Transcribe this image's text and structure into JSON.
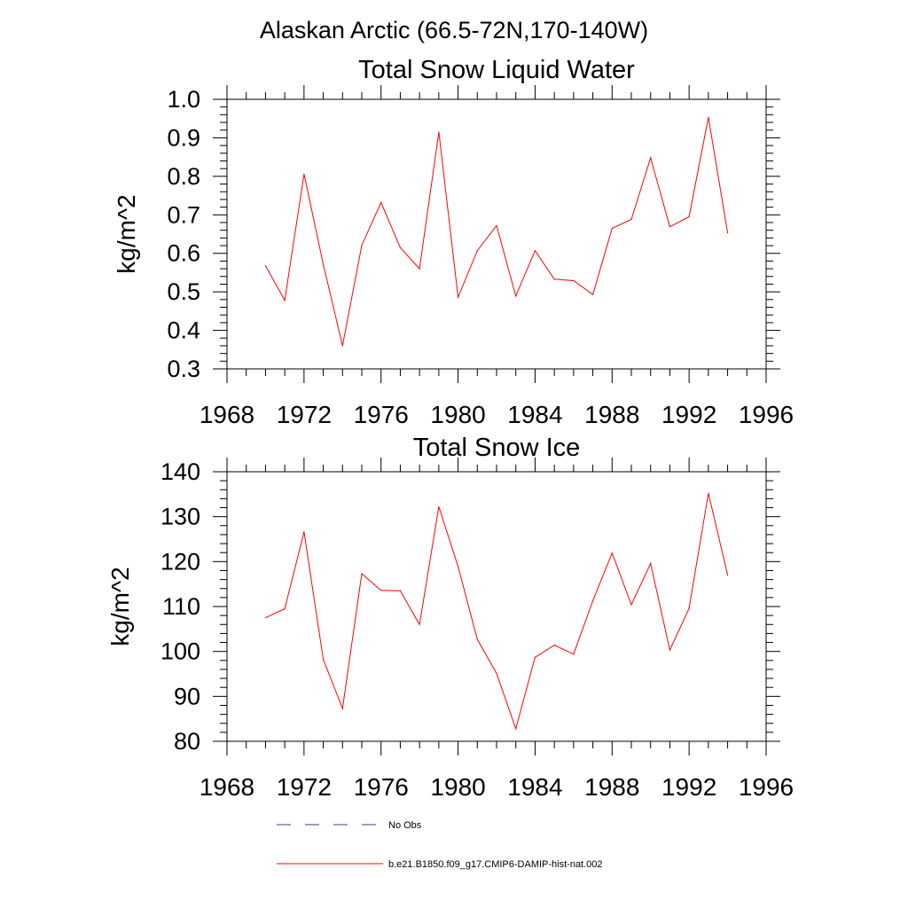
{
  "header": {
    "title": "Alaskan Arctic (66.5-72N,170-140W)"
  },
  "colors": {
    "series": "#ff0000",
    "obs": "#3c3c8c",
    "axis": "#000000"
  },
  "legend": [
    {
      "label": "No Obs",
      "style": "dashed",
      "color": "#3c3c8c"
    },
    {
      "label": "b.e21.B1850.f09_g17.CMIP6-DAMIP-hist-nat.002",
      "style": "solid",
      "color": "#ff0000"
    }
  ],
  "chart_data": [
    {
      "type": "line",
      "title": "Total Snow Liquid Water",
      "ylabel": "kg/m^2",
      "xlabel": "",
      "xlim": [
        1968,
        1996
      ],
      "ylim": [
        0.3,
        1.0
      ],
      "xticks": [
        "1968",
        "1972",
        "1976",
        "1980",
        "1984",
        "1988",
        "1992",
        "1996"
      ],
      "yticks": [
        "0.3",
        "0.4",
        "0.5",
        "0.6",
        "0.7",
        "0.8",
        "0.9",
        "1.0"
      ],
      "x": [
        1970,
        1971,
        1972,
        1973,
        1974,
        1975,
        1976,
        1977,
        1978,
        1979,
        1980,
        1981,
        1982,
        1983,
        1984,
        1985,
        1986,
        1987,
        1988,
        1989,
        1990,
        1991,
        1992,
        1993,
        1994
      ],
      "series": [
        {
          "values": [
            0.568,
            0.478,
            0.806,
            0.571,
            0.36,
            0.621,
            0.732,
            0.615,
            0.56,
            0.915,
            0.486,
            0.607,
            0.672,
            0.489,
            0.607,
            0.533,
            0.529,
            0.493,
            0.665,
            0.688,
            0.848,
            0.669,
            0.695,
            0.953,
            0.653
          ]
        }
      ],
      "grid": false
    },
    {
      "type": "line",
      "title": "Total Snow Ice",
      "ylabel": "kg/m^2",
      "xlabel": "",
      "xlim": [
        1968,
        1996
      ],
      "ylim": [
        80,
        140
      ],
      "xticks": [
        "1968",
        "1972",
        "1976",
        "1980",
        "1984",
        "1988",
        "1992",
        "1996"
      ],
      "yticks": [
        "80",
        "90",
        "100",
        "110",
        "120",
        "130",
        "140"
      ],
      "x": [
        1970,
        1971,
        1972,
        1973,
        1974,
        1975,
        1976,
        1977,
        1978,
        1979,
        1980,
        1981,
        1982,
        1983,
        1984,
        1985,
        1986,
        1987,
        1988,
        1989,
        1990,
        1991,
        1992,
        1993,
        1994
      ],
      "series": [
        {
          "values": [
            107.5,
            109.5,
            126.6,
            98.2,
            87.3,
            117.3,
            113.6,
            113.5,
            106.0,
            132.2,
            118.9,
            102.7,
            95.1,
            82.8,
            98.7,
            101.4,
            99.4,
            111.3,
            121.9,
            110.4,
            119.6,
            100.3,
            109.6,
            135.2,
            117.0
          ]
        }
      ],
      "grid": false
    }
  ]
}
